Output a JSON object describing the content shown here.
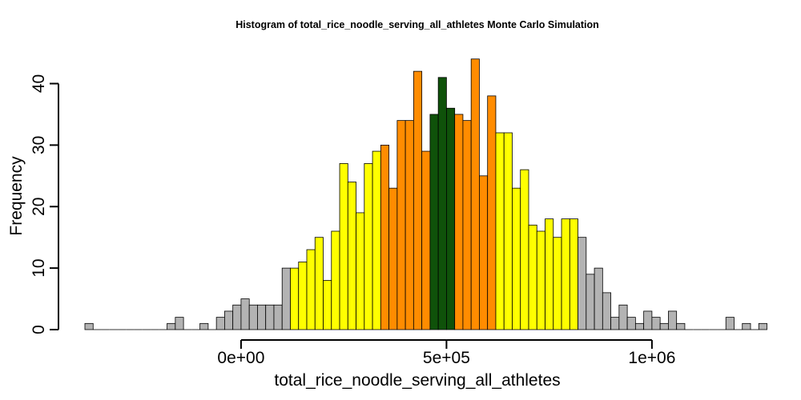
{
  "chart_data": {
    "type": "bar",
    "title": "Histogram of  total_rice_noodle_serving_all_athletes  Monte Carlo Simulation",
    "xlabel": "total_rice_noodle_serving_all_athletes",
    "ylabel": "Frequency",
    "grid": false,
    "legend": "none",
    "x_ticks": [
      {
        "value": 0,
        "label": "0e+00"
      },
      {
        "value": 500000,
        "label": "5e+05"
      },
      {
        "value": 1000000,
        "label": "1e+06"
      }
    ],
    "y_ticks": [
      {
        "value": 0,
        "label": "0"
      },
      {
        "value": 10,
        "label": "10"
      },
      {
        "value": 20,
        "label": "20"
      },
      {
        "value": 30,
        "label": "30"
      },
      {
        "value": 40,
        "label": "40"
      }
    ],
    "bin_start": -380000,
    "bin_width": 20000,
    "xlim": [
      -380000,
      1240000
    ],
    "ylim": [
      0,
      44
    ],
    "colors": {
      "gray": "#B3B3B3",
      "yellow": "#FFFF00",
      "orange": "#FF8C00",
      "green": "#0F520A"
    },
    "bins": [
      {
        "count": 1,
        "color": "gray"
      },
      {
        "count": 0,
        "color": "gray"
      },
      {
        "count": 0,
        "color": "gray"
      },
      {
        "count": 0,
        "color": "gray"
      },
      {
        "count": 0,
        "color": "gray"
      },
      {
        "count": 0,
        "color": "gray"
      },
      {
        "count": 0,
        "color": "gray"
      },
      {
        "count": 0,
        "color": "gray"
      },
      {
        "count": 0,
        "color": "gray"
      },
      {
        "count": 0,
        "color": "gray"
      },
      {
        "count": 1,
        "color": "gray"
      },
      {
        "count": 2,
        "color": "gray"
      },
      {
        "count": 0,
        "color": "gray"
      },
      {
        "count": 0,
        "color": "gray"
      },
      {
        "count": 1,
        "color": "gray"
      },
      {
        "count": 0,
        "color": "gray"
      },
      {
        "count": 2,
        "color": "gray"
      },
      {
        "count": 3,
        "color": "gray"
      },
      {
        "count": 4,
        "color": "gray"
      },
      {
        "count": 5,
        "color": "gray"
      },
      {
        "count": 4,
        "color": "gray"
      },
      {
        "count": 4,
        "color": "gray"
      },
      {
        "count": 4,
        "color": "gray"
      },
      {
        "count": 4,
        "color": "gray"
      },
      {
        "count": 10,
        "color": "gray"
      },
      {
        "count": 10,
        "color": "yellow"
      },
      {
        "count": 11,
        "color": "yellow"
      },
      {
        "count": 13,
        "color": "yellow"
      },
      {
        "count": 15,
        "color": "yellow"
      },
      {
        "count": 8,
        "color": "yellow"
      },
      {
        "count": 16,
        "color": "yellow"
      },
      {
        "count": 27,
        "color": "yellow"
      },
      {
        "count": 24,
        "color": "yellow"
      },
      {
        "count": 19,
        "color": "yellow"
      },
      {
        "count": 27,
        "color": "yellow"
      },
      {
        "count": 29,
        "color": "yellow"
      },
      {
        "count": 30,
        "color": "orange"
      },
      {
        "count": 23,
        "color": "orange"
      },
      {
        "count": 34,
        "color": "orange"
      },
      {
        "count": 34,
        "color": "orange"
      },
      {
        "count": 42,
        "color": "orange"
      },
      {
        "count": 29,
        "color": "orange"
      },
      {
        "count": 35,
        "color": "green"
      },
      {
        "count": 41,
        "color": "green"
      },
      {
        "count": 36,
        "color": "green"
      },
      {
        "count": 35,
        "color": "orange"
      },
      {
        "count": 34,
        "color": "orange"
      },
      {
        "count": 44,
        "color": "orange"
      },
      {
        "count": 25,
        "color": "orange"
      },
      {
        "count": 38,
        "color": "orange"
      },
      {
        "count": 32,
        "color": "yellow"
      },
      {
        "count": 32,
        "color": "yellow"
      },
      {
        "count": 23,
        "color": "yellow"
      },
      {
        "count": 26,
        "color": "yellow"
      },
      {
        "count": 17,
        "color": "yellow"
      },
      {
        "count": 16,
        "color": "yellow"
      },
      {
        "count": 18,
        "color": "yellow"
      },
      {
        "count": 15,
        "color": "yellow"
      },
      {
        "count": 18,
        "color": "yellow"
      },
      {
        "count": 18,
        "color": "yellow"
      },
      {
        "count": 15,
        "color": "gray"
      },
      {
        "count": 9,
        "color": "gray"
      },
      {
        "count": 10,
        "color": "gray"
      },
      {
        "count": 6,
        "color": "gray"
      },
      {
        "count": 2,
        "color": "gray"
      },
      {
        "count": 4,
        "color": "gray"
      },
      {
        "count": 2,
        "color": "gray"
      },
      {
        "count": 1,
        "color": "gray"
      },
      {
        "count": 3,
        "color": "gray"
      },
      {
        "count": 2,
        "color": "gray"
      },
      {
        "count": 1,
        "color": "gray"
      },
      {
        "count": 3,
        "color": "gray"
      },
      {
        "count": 1,
        "color": "gray"
      },
      {
        "count": 0,
        "color": "gray"
      },
      {
        "count": 0,
        "color": "gray"
      },
      {
        "count": 0,
        "color": "gray"
      },
      {
        "count": 0,
        "color": "gray"
      },
      {
        "count": 0,
        "color": "gray"
      },
      {
        "count": 2,
        "color": "gray"
      },
      {
        "count": 0,
        "color": "gray"
      },
      {
        "count": 1,
        "color": "gray"
      },
      {
        "count": 0,
        "color": "gray"
      },
      {
        "count": 1,
        "color": "gray"
      }
    ]
  }
}
